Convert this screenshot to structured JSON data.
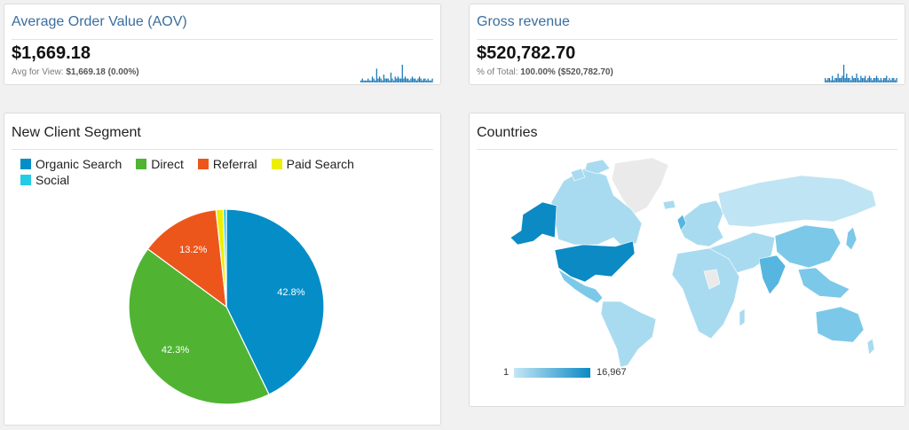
{
  "aov": {
    "title": "Average Order Value (AOV)",
    "value": "$1,669.18",
    "sub_prefix": "Avg for View:",
    "sub_value": "$1,669.18 (0.00%)",
    "sparkline": [
      1,
      2,
      1,
      1,
      1,
      2,
      1,
      1,
      3,
      2,
      1,
      7,
      2,
      3,
      2,
      1,
      4,
      2,
      2,
      2,
      1,
      5,
      2,
      1,
      3,
      2,
      3,
      2,
      2,
      9,
      2,
      3,
      2,
      2,
      1,
      2,
      3,
      2,
      2,
      1,
      2,
      3,
      2,
      1,
      2,
      2,
      1,
      2,
      1,
      1,
      2
    ],
    "color": "#1f7ab8"
  },
  "gross_revenue": {
    "title": "Gross revenue",
    "value": "$520,782.70",
    "sub_prefix": "% of Total:",
    "sub_value": "100.00% ($520,782.70)",
    "sparkline": [
      2,
      1,
      2,
      2,
      1,
      3,
      1,
      2,
      2,
      4,
      2,
      2,
      3,
      8,
      2,
      4,
      2,
      2,
      1,
      3,
      2,
      2,
      4,
      2,
      1,
      3,
      2,
      2,
      3,
      1,
      2,
      3,
      2,
      1,
      2,
      2,
      3,
      2,
      1,
      2,
      1,
      2,
      2,
      3,
      1,
      2,
      1,
      2,
      2,
      1,
      2
    ],
    "color": "#1f7ab8"
  },
  "segment": {
    "title": "New Client Segment",
    "legend": [
      {
        "label": "Organic Search",
        "color": "#058dc7"
      },
      {
        "label": "Direct",
        "color": "#50b432"
      },
      {
        "label": "Referral",
        "color": "#ed561b"
      },
      {
        "label": "Paid Search",
        "color": "#edef00"
      },
      {
        "label": "Social",
        "color": "#24cbe5"
      }
    ]
  },
  "chart_data": {
    "type": "pie",
    "title": "New Client Segment",
    "categories": [
      "Organic Search",
      "Direct",
      "Referral",
      "Paid Search",
      "Social"
    ],
    "values": [
      42.8,
      42.3,
      13.2,
      1.2,
      0.5
    ],
    "labels": [
      "42.8%",
      "42.3%",
      "13.2%",
      "",
      ""
    ],
    "colors": [
      "#058dc7",
      "#50b432",
      "#ed561b",
      "#edef00",
      "#24cbe5"
    ]
  },
  "countries": {
    "title": "Countries",
    "scale_min": "1",
    "scale_max": "16,967",
    "color_low": "#c4e6f5",
    "color_high": "#0b8ac4",
    "color_none": "#f0f0f0"
  }
}
